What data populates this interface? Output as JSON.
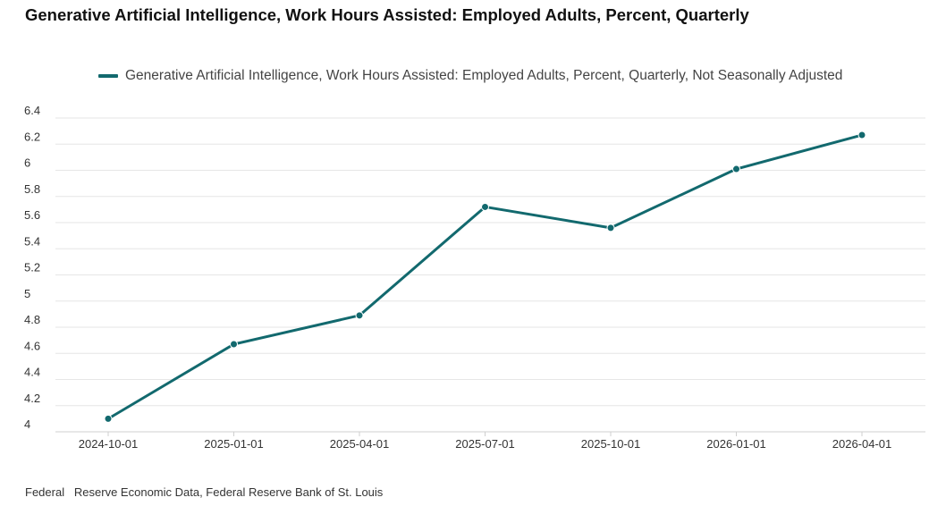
{
  "chart_data": {
    "type": "line",
    "title": "Generative Artificial Intelligence, Work Hours Assisted: Employed Adults, Percent, Quarterly",
    "xlabel": "",
    "ylabel": "",
    "x": [
      "2024-10-01",
      "2025-01-01",
      "2025-04-01",
      "2025-07-01",
      "2025-10-01",
      "2026-01-01",
      "2026-04-01"
    ],
    "series": [
      {
        "name": "Generative Artificial Intelligence, Work Hours Assisted: Employed Adults, Percent, Quarterly, Not Seasonally Adjusted",
        "values": [
          4.1,
          4.67,
          4.89,
          5.72,
          5.56,
          6.01,
          6.27
        ],
        "color": "#12696e"
      }
    ],
    "yticks": [
      "4",
      "4.2",
      "4.4",
      "4.6",
      "4.8",
      "5",
      "5.2",
      "5.4",
      "5.6",
      "5.8",
      "6",
      "6.2",
      "6.4"
    ],
    "ylim": [
      4,
      6.4
    ],
    "grid": true,
    "legend_position": "top"
  },
  "source_note": "Federal   Reserve Economic Data, Federal Reserve Bank of St. Louis"
}
